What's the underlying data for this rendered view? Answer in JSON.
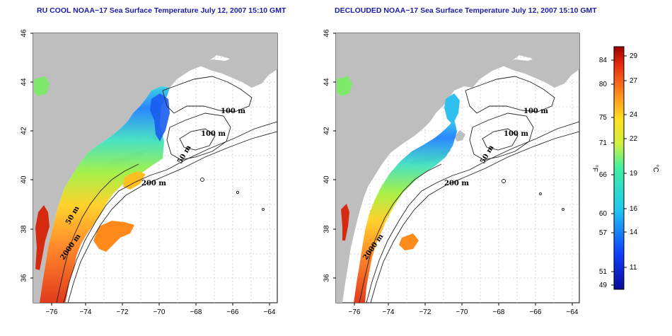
{
  "titles": {
    "left": "RU COOL NOAA−17 Sea Surface Temperature July 12, 2007 15:10 GMT",
    "right": "DECLOUDED NOAA−17 Sea Surface Temperature July 12, 2007 15:10 GMT"
  },
  "map_axes": {
    "x_ticks": [
      "−76",
      "−74",
      "−72",
      "−70",
      "−68",
      "−66",
      "−64"
    ],
    "y_ticks": [
      "36",
      "38",
      "40",
      "42",
      "44",
      "46"
    ]
  },
  "contour_labels": {
    "left": [
      "100 m",
      "100 m",
      "50 m",
      "200 m",
      "50 m",
      "2000 m"
    ],
    "right": [
      "100 m",
      "100 m",
      "50 m",
      "200 m",
      "2000 m"
    ]
  },
  "colorbar": {
    "unit_f": "°F",
    "unit_c": "°C",
    "f_ticks": [
      "84",
      "80",
      "75",
      "71",
      "66",
      "60",
      "57",
      "51",
      "49"
    ],
    "c_ticks": [
      "29",
      "27",
      "24",
      "22",
      "19",
      "16",
      "14",
      "11"
    ]
  },
  "colors": {
    "land": "#bebebe",
    "title": "#1a1aa6",
    "warm": "#d62a10",
    "cold": "#0a0a9a"
  }
}
